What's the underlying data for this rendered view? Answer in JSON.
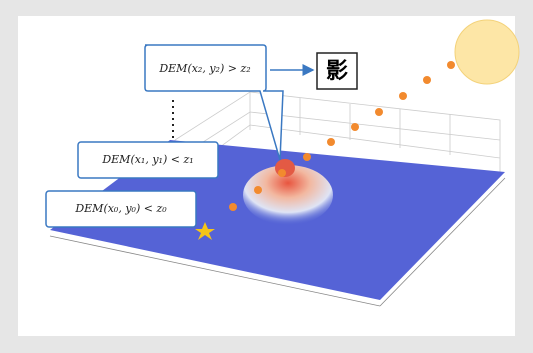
{
  "callouts": [
    {
      "label": "DEM(x₂, y₂) > z₂"
    },
    {
      "label": "DEM(x₁, y₁) < z₁"
    },
    {
      "label": "DEM(x₀, y₀) < z₀"
    }
  ],
  "icon": {
    "label": "影"
  }
}
